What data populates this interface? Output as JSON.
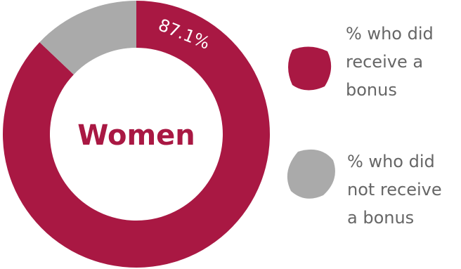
{
  "chart_data": {
    "type": "pie",
    "donut": true,
    "center_label": "Women",
    "slices": [
      {
        "name": "% who did receive a bonus",
        "value": 87.1,
        "label": "87.1%",
        "color": "#A91843"
      },
      {
        "name": "% who did not receive a bonus",
        "value": 12.9,
        "label": "",
        "color": "#AAAAAA"
      }
    ]
  },
  "legend": {
    "items": [
      {
        "lines": [
          " % who did",
          "receive a",
          "bonus"
        ],
        "color": "#A91843"
      },
      {
        "lines": [
          "% who did",
          "not receive",
          "a bonus"
        ],
        "color": "#AAAAAA"
      }
    ]
  }
}
